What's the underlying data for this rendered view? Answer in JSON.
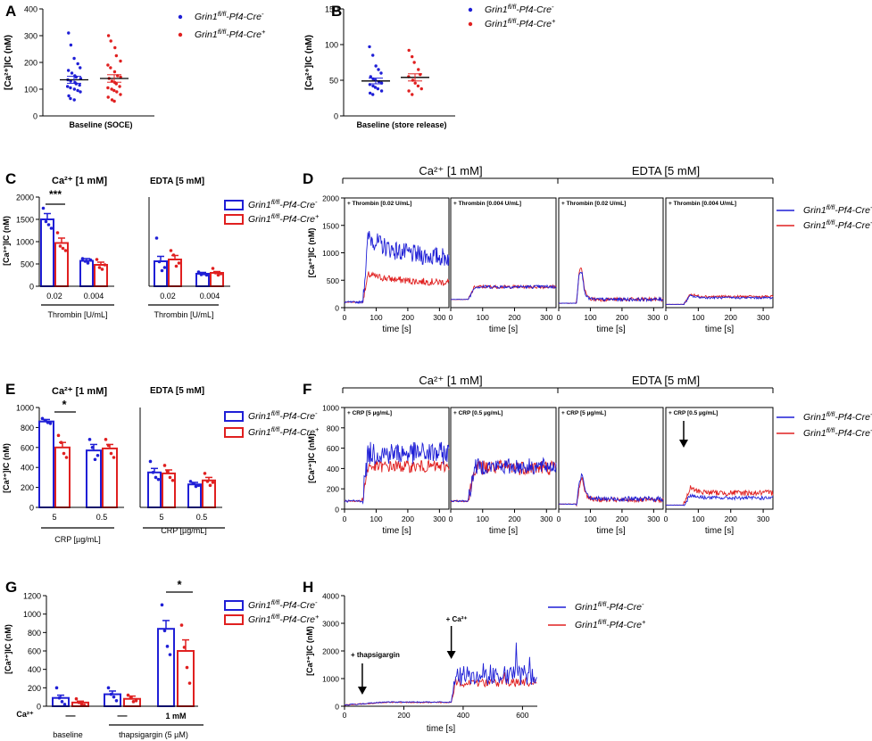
{
  "colors": {
    "cre_minus": "#1f1fd6",
    "cre_plus": "#e02020",
    "axis": "#000000"
  },
  "legend": {
    "geno_prefix": "Grin1",
    "geno_sup": "fl/fl",
    "minus_mid": "-Pf4-Cre",
    "minus_sup": "-",
    "plus_sup": "+"
  },
  "common": {
    "ca_ic_label": "[Ca²⁺]IC (nM)",
    "time_label": "time [s]",
    "ca_section": "Ca²⁺ [1 mM]",
    "edta_section": "EDTA [5 mM]"
  },
  "chart_data": [
    {
      "panel": "A",
      "type": "scatter",
      "ylabel": "[Ca²⁺]IC (nM)",
      "xlabel": "Baseline (SOCE)",
      "ylim": [
        0,
        400
      ],
      "yticks": [
        0,
        100,
        200,
        300,
        400
      ],
      "series": [
        {
          "name": "Grin1fl/fl-Pf4-Cre-",
          "mean": 135,
          "sem": 13,
          "values": [
            310,
            265,
            215,
            195,
            180,
            170,
            160,
            150,
            145,
            140,
            135,
            130,
            125,
            120,
            115,
            110,
            105,
            100,
            95,
            90,
            75,
            65,
            60
          ]
        },
        {
          "name": "Grin1fl/fl-Pf4-Cre+",
          "mean": 140,
          "sem": 14,
          "values": [
            300,
            280,
            255,
            225,
            205,
            190,
            180,
            165,
            150,
            145,
            140,
            130,
            125,
            120,
            110,
            105,
            100,
            95,
            90,
            80,
            70,
            60,
            55
          ]
        }
      ]
    },
    {
      "panel": "B",
      "type": "scatter",
      "ylabel": "[Ca²⁺]IC (nM)",
      "xlabel": "Baseline (store release)",
      "ylim": [
        0,
        150
      ],
      "yticks": [
        0,
        50,
        100,
        150
      ],
      "series": [
        {
          "name": "Grin1fl/fl-Pf4-Cre-",
          "mean": 49,
          "sem": 4,
          "values": [
            97,
            85,
            70,
            65,
            60,
            55,
            52,
            50,
            48,
            46,
            44,
            42,
            40,
            38,
            35,
            32,
            30
          ]
        },
        {
          "name": "Grin1fl/fl-Pf4-Cre+",
          "mean": 54,
          "sem": 5,
          "values": [
            92,
            83,
            75,
            65,
            58,
            55,
            50,
            46,
            42,
            38,
            35,
            30
          ]
        }
      ]
    },
    {
      "panel": "C",
      "type": "bar",
      "ylabel": "[Ca²⁺]IC (nM)",
      "ylim": [
        0,
        2000
      ],
      "yticks": [
        0,
        500,
        1000,
        1500,
        2000
      ],
      "groups": [
        {
          "title": "Ca²⁺ [1 mM]",
          "xlabel": "Thrombin [U/mL]",
          "categories": [
            "0.02",
            "0.004"
          ],
          "series": [
            {
              "name": "Grin1fl/fl-Pf4-Cre-",
              "values": [
                1500,
                570
              ],
              "sem": [
                130,
                50
              ],
              "points": [
                [
                  1750,
                  1450,
                  1380,
                  1300
                ],
                [
                  620,
                  560,
                  520,
                  590
                ]
              ]
            },
            {
              "name": "Grin1fl/fl-Pf4-Cre+",
              "values": [
                970,
                480
              ],
              "sem": [
                110,
                60
              ],
              "points": [
                [
                  1200,
                  900,
                  850,
                  800
                ],
                [
                  600,
                  420,
                  380,
                  480
                ]
              ]
            }
          ],
          "annotation": "***"
        },
        {
          "title": "EDTA [5 mM]",
          "xlabel": "Thrombin [U/mL]",
          "categories": [
            "0.02",
            "0.004"
          ],
          "series": [
            {
              "name": "Grin1fl/fl-Pf4-Cre-",
              "values": [
                560,
                280
              ],
              "sem": [
                110,
                30
              ],
              "points": [
                [
                  1080,
                  550,
                  350,
                  420
                ],
                [
                  320,
                  260,
                  280,
                  250
                ]
              ]
            },
            {
              "name": "Grin1fl/fl-Pf4-Cre+",
              "values": [
                600,
                300
              ],
              "sem": [
                90,
                30
              ],
              "points": [
                [
                  800,
                  700,
                  450,
                  520
                ],
                [
                  400,
                  300,
                  250,
                  280
                ]
              ]
            }
          ]
        }
      ]
    },
    {
      "panel": "D",
      "type": "line",
      "ylabel": "[Ca²⁺]IC (nM)",
      "xlabel": "time [s]",
      "ylim": [
        0,
        2000
      ],
      "yticks": [
        0,
        500,
        1000,
        1500,
        2000
      ],
      "xlim": [
        0,
        330
      ],
      "xticks": [
        0,
        100,
        200,
        300
      ],
      "subpanels": [
        {
          "label": "+ Thrombin [0.02 U/mL]",
          "minus": {
            "base": 100,
            "plateau": 900,
            "peak": 1300,
            "decay": 0.0012,
            "noise": 350
          },
          "plus": {
            "base": 100,
            "plateau": 450,
            "peak": 600,
            "decay": 0.001,
            "noise": 130
          }
        },
        {
          "label": "+ Thrombin [0.004 U/mL]",
          "minus": {
            "base": 150,
            "plateau": 380,
            "peak": 380,
            "decay": 0,
            "noise": 60
          },
          "plus": {
            "base": 150,
            "plateau": 380,
            "peak": 380,
            "decay": 0,
            "noise": 60
          }
        },
        {
          "label": "+ Thrombin [0.02 U/mL]",
          "minus": {
            "base": 80,
            "plateau": 150,
            "peak": 600,
            "decay": 0.015,
            "noise": 60
          },
          "plus": {
            "base": 80,
            "plateau": 150,
            "peak": 650,
            "decay": 0.014,
            "noise": 70
          }
        },
        {
          "label": "+ Thrombin [0.004 U/mL]",
          "minus": {
            "base": 60,
            "plateau": 180,
            "peak": 220,
            "decay": 0.005,
            "noise": 40
          },
          "plus": {
            "base": 60,
            "plateau": 200,
            "peak": 250,
            "decay": 0.005,
            "noise": 45
          }
        }
      ]
    },
    {
      "panel": "E",
      "type": "bar",
      "ylabel": "[Ca²⁺]IC (nM)",
      "ylim": [
        0,
        1000
      ],
      "yticks": [
        0,
        200,
        400,
        600,
        800,
        1000
      ],
      "groups": [
        {
          "title": "Ca²⁺ [1 mM]",
          "xlabel": "CRP [µg/mL]",
          "categories": [
            "5",
            "0.5"
          ],
          "series": [
            {
              "name": "Grin1fl/fl-Pf4-Cre-",
              "values": [
                860,
                570
              ],
              "sem": [
                20,
                60
              ],
              "points": [
                [
                  890,
                  870,
                  850,
                  840
                ],
                [
                  680,
                  600,
                  480,
                  520
                ]
              ]
            },
            {
              "name": "Grin1fl/fl-Pf4-Cre+",
              "values": [
                600,
                590
              ],
              "sem": [
                50,
                40
              ],
              "points": [
                [
                  720,
                  650,
                  540,
                  500
                ],
                [
                  680,
                  620,
                  540,
                  500
                ]
              ]
            }
          ],
          "annotation": "*"
        },
        {
          "title": "EDTA [5 mM]",
          "xlabel": "CRP [µg/mL]",
          "categories": [
            "5",
            "0.5"
          ],
          "series": [
            {
              "name": "Grin1fl/fl-Pf4-Cre-",
              "values": [
                350,
                230
              ],
              "sem": [
                40,
                20
              ],
              "points": [
                [
                  460,
                  350,
                  300,
                  280
                ],
                [
                  260,
                  240,
                  210,
                  220
                ]
              ]
            },
            {
              "name": "Grin1fl/fl-Pf4-Cre+",
              "values": [
                340,
                270
              ],
              "sem": [
                35,
                30
              ],
              "points": [
                [
                  420,
                  360,
                  300,
                  270
                ],
                [
                  340,
                  260,
                  220,
                  250
                ]
              ]
            }
          ]
        }
      ]
    },
    {
      "panel": "F",
      "type": "line",
      "ylabel": "[Ca²⁺]IC (nM)",
      "xlabel": "time [s]",
      "ylim": [
        0,
        1000
      ],
      "yticks": [
        0,
        200,
        400,
        600,
        800,
        1000
      ],
      "xlim": [
        0,
        330
      ],
      "xticks": [
        0,
        100,
        200,
        300
      ],
      "subpanels": [
        {
          "label": "+ CRP [5 µg/mL]",
          "minus": {
            "base": 80,
            "plateau": 550,
            "peak": 550,
            "decay": 0,
            "noise": 220
          },
          "plus": {
            "base": 80,
            "plateau": 420,
            "peak": 420,
            "decay": 0,
            "noise": 120
          }
        },
        {
          "label": "+ CRP [0.5 µg/mL]",
          "minus": {
            "base": 80,
            "plateau": 420,
            "peak": 420,
            "decay": 0,
            "noise": 160
          },
          "plus": {
            "base": 80,
            "plateau": 410,
            "peak": 410,
            "decay": 0,
            "noise": 150
          }
        },
        {
          "label": "+ CRP [5 µg/mL]",
          "minus": {
            "base": 50,
            "plateau": 100,
            "peak": 350,
            "decay": 0.01,
            "noise": 50
          },
          "plus": {
            "base": 50,
            "plateau": 90,
            "peak": 300,
            "decay": 0.01,
            "noise": 45
          }
        },
        {
          "label": "+ CRP [0.5 µg/mL]",
          "minus": {
            "base": 40,
            "plateau": 110,
            "peak": 140,
            "decay": 0.004,
            "noise": 35
          },
          "plus": {
            "base": 40,
            "plateau": 160,
            "peak": 210,
            "decay": 0.004,
            "noise": 55
          }
        }
      ]
    },
    {
      "panel": "G",
      "type": "bar",
      "ylabel": "[Ca²⁺]IC (nM)",
      "ylim": [
        0,
        1200
      ],
      "yticks": [
        0,
        200,
        400,
        600,
        800,
        1000,
        1200
      ],
      "row_label": "Ca²⁺",
      "ca_values": [
        "—",
        "—",
        "1 mM"
      ],
      "categories": [
        "baseline",
        "thapsigargin (5 µM)",
        ""
      ],
      "group_labels": [
        "baseline",
        "thapsigargin (5 µM)"
      ],
      "annotation": "*",
      "series": [
        {
          "name": "Grin1fl/fl-Pf4-Cre-",
          "values": [
            90,
            130,
            840
          ],
          "sem": [
            30,
            35,
            90
          ],
          "points": [
            [
              200,
              90,
              50,
              20
            ],
            [
              200,
              130,
              100,
              60
            ],
            [
              1100,
              820,
              650,
              560
            ]
          ]
        },
        {
          "name": "Grin1fl/fl-Pf4-Cre+",
          "values": [
            40,
            80,
            600
          ],
          "sem": [
            15,
            30,
            120
          ],
          "points": [
            [
              80,
              40,
              20,
              10
            ],
            [
              120,
              90,
              50,
              60
            ],
            [
              880,
              640,
              420,
              250
            ]
          ]
        }
      ]
    },
    {
      "panel": "H",
      "type": "line",
      "ylabel": "[Ca²⁺]IC (nM)",
      "xlabel": "time [s]",
      "ylim": [
        0,
        4000
      ],
      "yticks": [
        0,
        1000,
        2000,
        3000,
        4000
      ],
      "xlim": [
        0,
        650
      ],
      "xticks": [
        0,
        200,
        400,
        600
      ],
      "annotations": [
        {
          "label": "+ thapsigargin",
          "t": 60
        },
        {
          "label": "+ Ca²⁺",
          "t": 360
        }
      ],
      "series": [
        {
          "name": "Grin1fl/fl-Pf4-Cre-",
          "pre": 150,
          "post": 1100,
          "noise": 700
        },
        {
          "name": "Grin1fl/fl-Pf4-Cre+",
          "pre": 140,
          "post": 850,
          "noise": 300
        }
      ]
    }
  ],
  "panels": {
    "A": "A",
    "B": "B",
    "C": "C",
    "D": "D",
    "E": "E",
    "F": "F",
    "G": "G",
    "H": "H"
  }
}
